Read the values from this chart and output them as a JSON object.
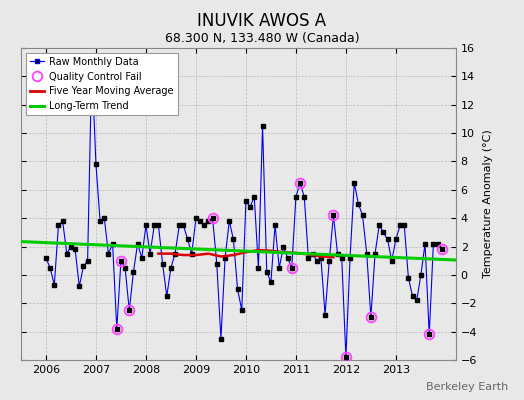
{
  "title": "INUVIK AWOS A",
  "subtitle": "68.300 N, 133.480 W (Canada)",
  "ylabel": "Temperature Anomaly (°C)",
  "credit": "Berkeley Earth",
  "ylim": [
    -6,
    16
  ],
  "yticks": [
    -6,
    -4,
    -2,
    0,
    2,
    4,
    6,
    8,
    10,
    12,
    14,
    16
  ],
  "xlim": [
    2005.5,
    2014.2
  ],
  "bg_color": "#e8e8e8",
  "monthly_data": [
    [
      2006.0,
      1.2
    ],
    [
      2006.083,
      0.5
    ],
    [
      2006.167,
      -0.7
    ],
    [
      2006.25,
      3.5
    ],
    [
      2006.333,
      3.8
    ],
    [
      2006.417,
      1.5
    ],
    [
      2006.5,
      2.0
    ],
    [
      2006.583,
      1.8
    ],
    [
      2006.667,
      -0.8
    ],
    [
      2006.75,
      0.6
    ],
    [
      2006.833,
      1.0
    ],
    [
      2006.917,
      15.0
    ],
    [
      2007.0,
      7.8
    ],
    [
      2007.083,
      3.8
    ],
    [
      2007.167,
      4.0
    ],
    [
      2007.25,
      1.5
    ],
    [
      2007.333,
      2.2
    ],
    [
      2007.417,
      -3.8
    ],
    [
      2007.5,
      1.0
    ],
    [
      2007.583,
      0.5
    ],
    [
      2007.667,
      -2.5
    ],
    [
      2007.75,
      0.2
    ],
    [
      2007.833,
      2.2
    ],
    [
      2007.917,
      1.2
    ],
    [
      2008.0,
      3.5
    ],
    [
      2008.083,
      1.5
    ],
    [
      2008.167,
      3.5
    ],
    [
      2008.25,
      3.5
    ],
    [
      2008.333,
      0.8
    ],
    [
      2008.417,
      -1.5
    ],
    [
      2008.5,
      0.5
    ],
    [
      2008.583,
      1.5
    ],
    [
      2008.667,
      3.5
    ],
    [
      2008.75,
      3.5
    ],
    [
      2008.833,
      2.5
    ],
    [
      2008.917,
      1.5
    ],
    [
      2009.0,
      4.0
    ],
    [
      2009.083,
      3.8
    ],
    [
      2009.167,
      3.5
    ],
    [
      2009.25,
      3.8
    ],
    [
      2009.333,
      4.0
    ],
    [
      2009.417,
      0.8
    ],
    [
      2009.5,
      -4.5
    ],
    [
      2009.583,
      1.2
    ],
    [
      2009.667,
      3.8
    ],
    [
      2009.75,
      2.5
    ],
    [
      2009.833,
      -1.0
    ],
    [
      2009.917,
      -2.5
    ],
    [
      2010.0,
      5.2
    ],
    [
      2010.083,
      4.8
    ],
    [
      2010.167,
      5.5
    ],
    [
      2010.25,
      0.5
    ],
    [
      2010.333,
      10.5
    ],
    [
      2010.417,
      0.2
    ],
    [
      2010.5,
      -0.5
    ],
    [
      2010.583,
      3.5
    ],
    [
      2010.667,
      0.5
    ],
    [
      2010.75,
      2.0
    ],
    [
      2010.833,
      1.2
    ],
    [
      2010.917,
      0.5
    ],
    [
      2011.0,
      5.5
    ],
    [
      2011.083,
      6.5
    ],
    [
      2011.167,
      5.5
    ],
    [
      2011.25,
      1.2
    ],
    [
      2011.333,
      1.5
    ],
    [
      2011.417,
      1.0
    ],
    [
      2011.5,
      1.2
    ],
    [
      2011.583,
      -2.8
    ],
    [
      2011.667,
      1.0
    ],
    [
      2011.75,
      4.2
    ],
    [
      2011.833,
      1.5
    ],
    [
      2011.917,
      1.2
    ],
    [
      2012.0,
      -5.8
    ],
    [
      2012.083,
      1.2
    ],
    [
      2012.167,
      6.5
    ],
    [
      2012.25,
      5.0
    ],
    [
      2012.333,
      4.2
    ],
    [
      2012.417,
      1.5
    ],
    [
      2012.5,
      -3.0
    ],
    [
      2012.583,
      1.5
    ],
    [
      2012.667,
      3.5
    ],
    [
      2012.75,
      3.0
    ],
    [
      2012.833,
      2.5
    ],
    [
      2012.917,
      1.0
    ],
    [
      2013.0,
      2.5
    ],
    [
      2013.083,
      3.5
    ],
    [
      2013.167,
      3.5
    ],
    [
      2013.25,
      -0.2
    ],
    [
      2013.333,
      -1.5
    ],
    [
      2013.417,
      -1.8
    ],
    [
      2013.5,
      0.0
    ],
    [
      2013.583,
      2.2
    ],
    [
      2013.667,
      -4.2
    ],
    [
      2013.75,
      2.2
    ],
    [
      2013.833,
      2.2
    ],
    [
      2013.917,
      1.8
    ]
  ],
  "qc_fail_points": [
    [
      2006.917,
      15.0
    ],
    [
      2007.5,
      1.0
    ],
    [
      2007.667,
      -2.5
    ],
    [
      2007.417,
      -3.8
    ],
    [
      2009.333,
      4.0
    ],
    [
      2010.917,
      0.5
    ],
    [
      2011.083,
      6.5
    ],
    [
      2011.75,
      4.2
    ],
    [
      2012.0,
      -5.8
    ],
    [
      2012.5,
      -3.0
    ],
    [
      2013.667,
      -4.2
    ],
    [
      2013.917,
      1.8
    ]
  ],
  "five_year_ma": [
    [
      2008.25,
      1.5
    ],
    [
      2008.5,
      1.5
    ],
    [
      2008.75,
      1.4
    ],
    [
      2009.0,
      1.4
    ],
    [
      2009.25,
      1.5
    ],
    [
      2009.5,
      1.3
    ],
    [
      2009.75,
      1.4
    ],
    [
      2010.0,
      1.6
    ],
    [
      2010.25,
      1.75
    ],
    [
      2010.5,
      1.7
    ],
    [
      2010.75,
      1.6
    ],
    [
      2011.0,
      1.55
    ],
    [
      2011.25,
      1.45
    ],
    [
      2011.5,
      1.3
    ],
    [
      2011.75,
      1.25
    ]
  ],
  "trend_x": [
    2005.5,
    2014.2
  ],
  "trend_y": [
    2.35,
    1.05
  ],
  "line_color": "#0000ee",
  "dot_color": "#000000",
  "ma_color": "#dd0000",
  "trend_color": "#00cc00",
  "qc_color": "#ff44ff",
  "grid_color": "#bbbbbb",
  "title_fontsize": 12,
  "subtitle_fontsize": 9,
  "tick_fontsize": 8,
  "credit_fontsize": 8
}
